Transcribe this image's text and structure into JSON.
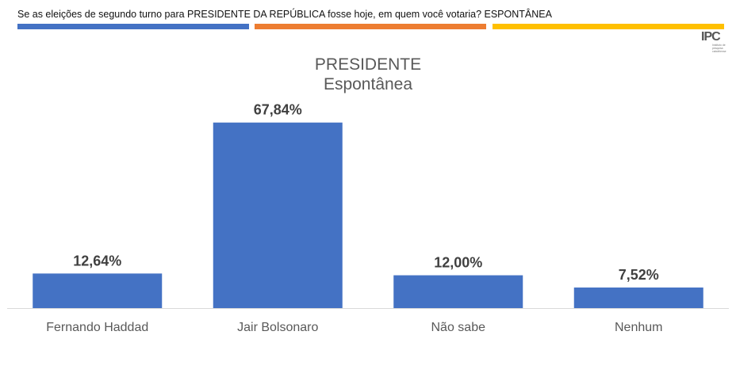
{
  "header": {
    "question": "Se as eleições de segundo turno para PRESIDENTE DA REPÚBLICA fosse hoje, em quem você votaria? ESPONTÂNEA",
    "stripe_colors": [
      "#4472C4",
      "#ED7D31",
      "#FFC000"
    ]
  },
  "logo": {
    "text": "IPC",
    "subtext": "Instituto de pesquisa cabofriense"
  },
  "colors": {
    "bar": "#4472C4",
    "label": "#404040",
    "category": "#595959",
    "axis": "#D9D9D9"
  },
  "chart_data": {
    "type": "bar",
    "title": "PRESIDENTE",
    "subtitle": "Espontânea",
    "categories": [
      "Fernando Haddad",
      "Jair Bolsonaro",
      "Não sabe",
      "Nenhum"
    ],
    "values": [
      12.64,
      67.84,
      12.0,
      7.52
    ],
    "value_labels": [
      "12,64%",
      "67,84%",
      "12,00%",
      "7,52%"
    ],
    "ylim": [
      0,
      75
    ],
    "grid": false,
    "legend": "none"
  }
}
